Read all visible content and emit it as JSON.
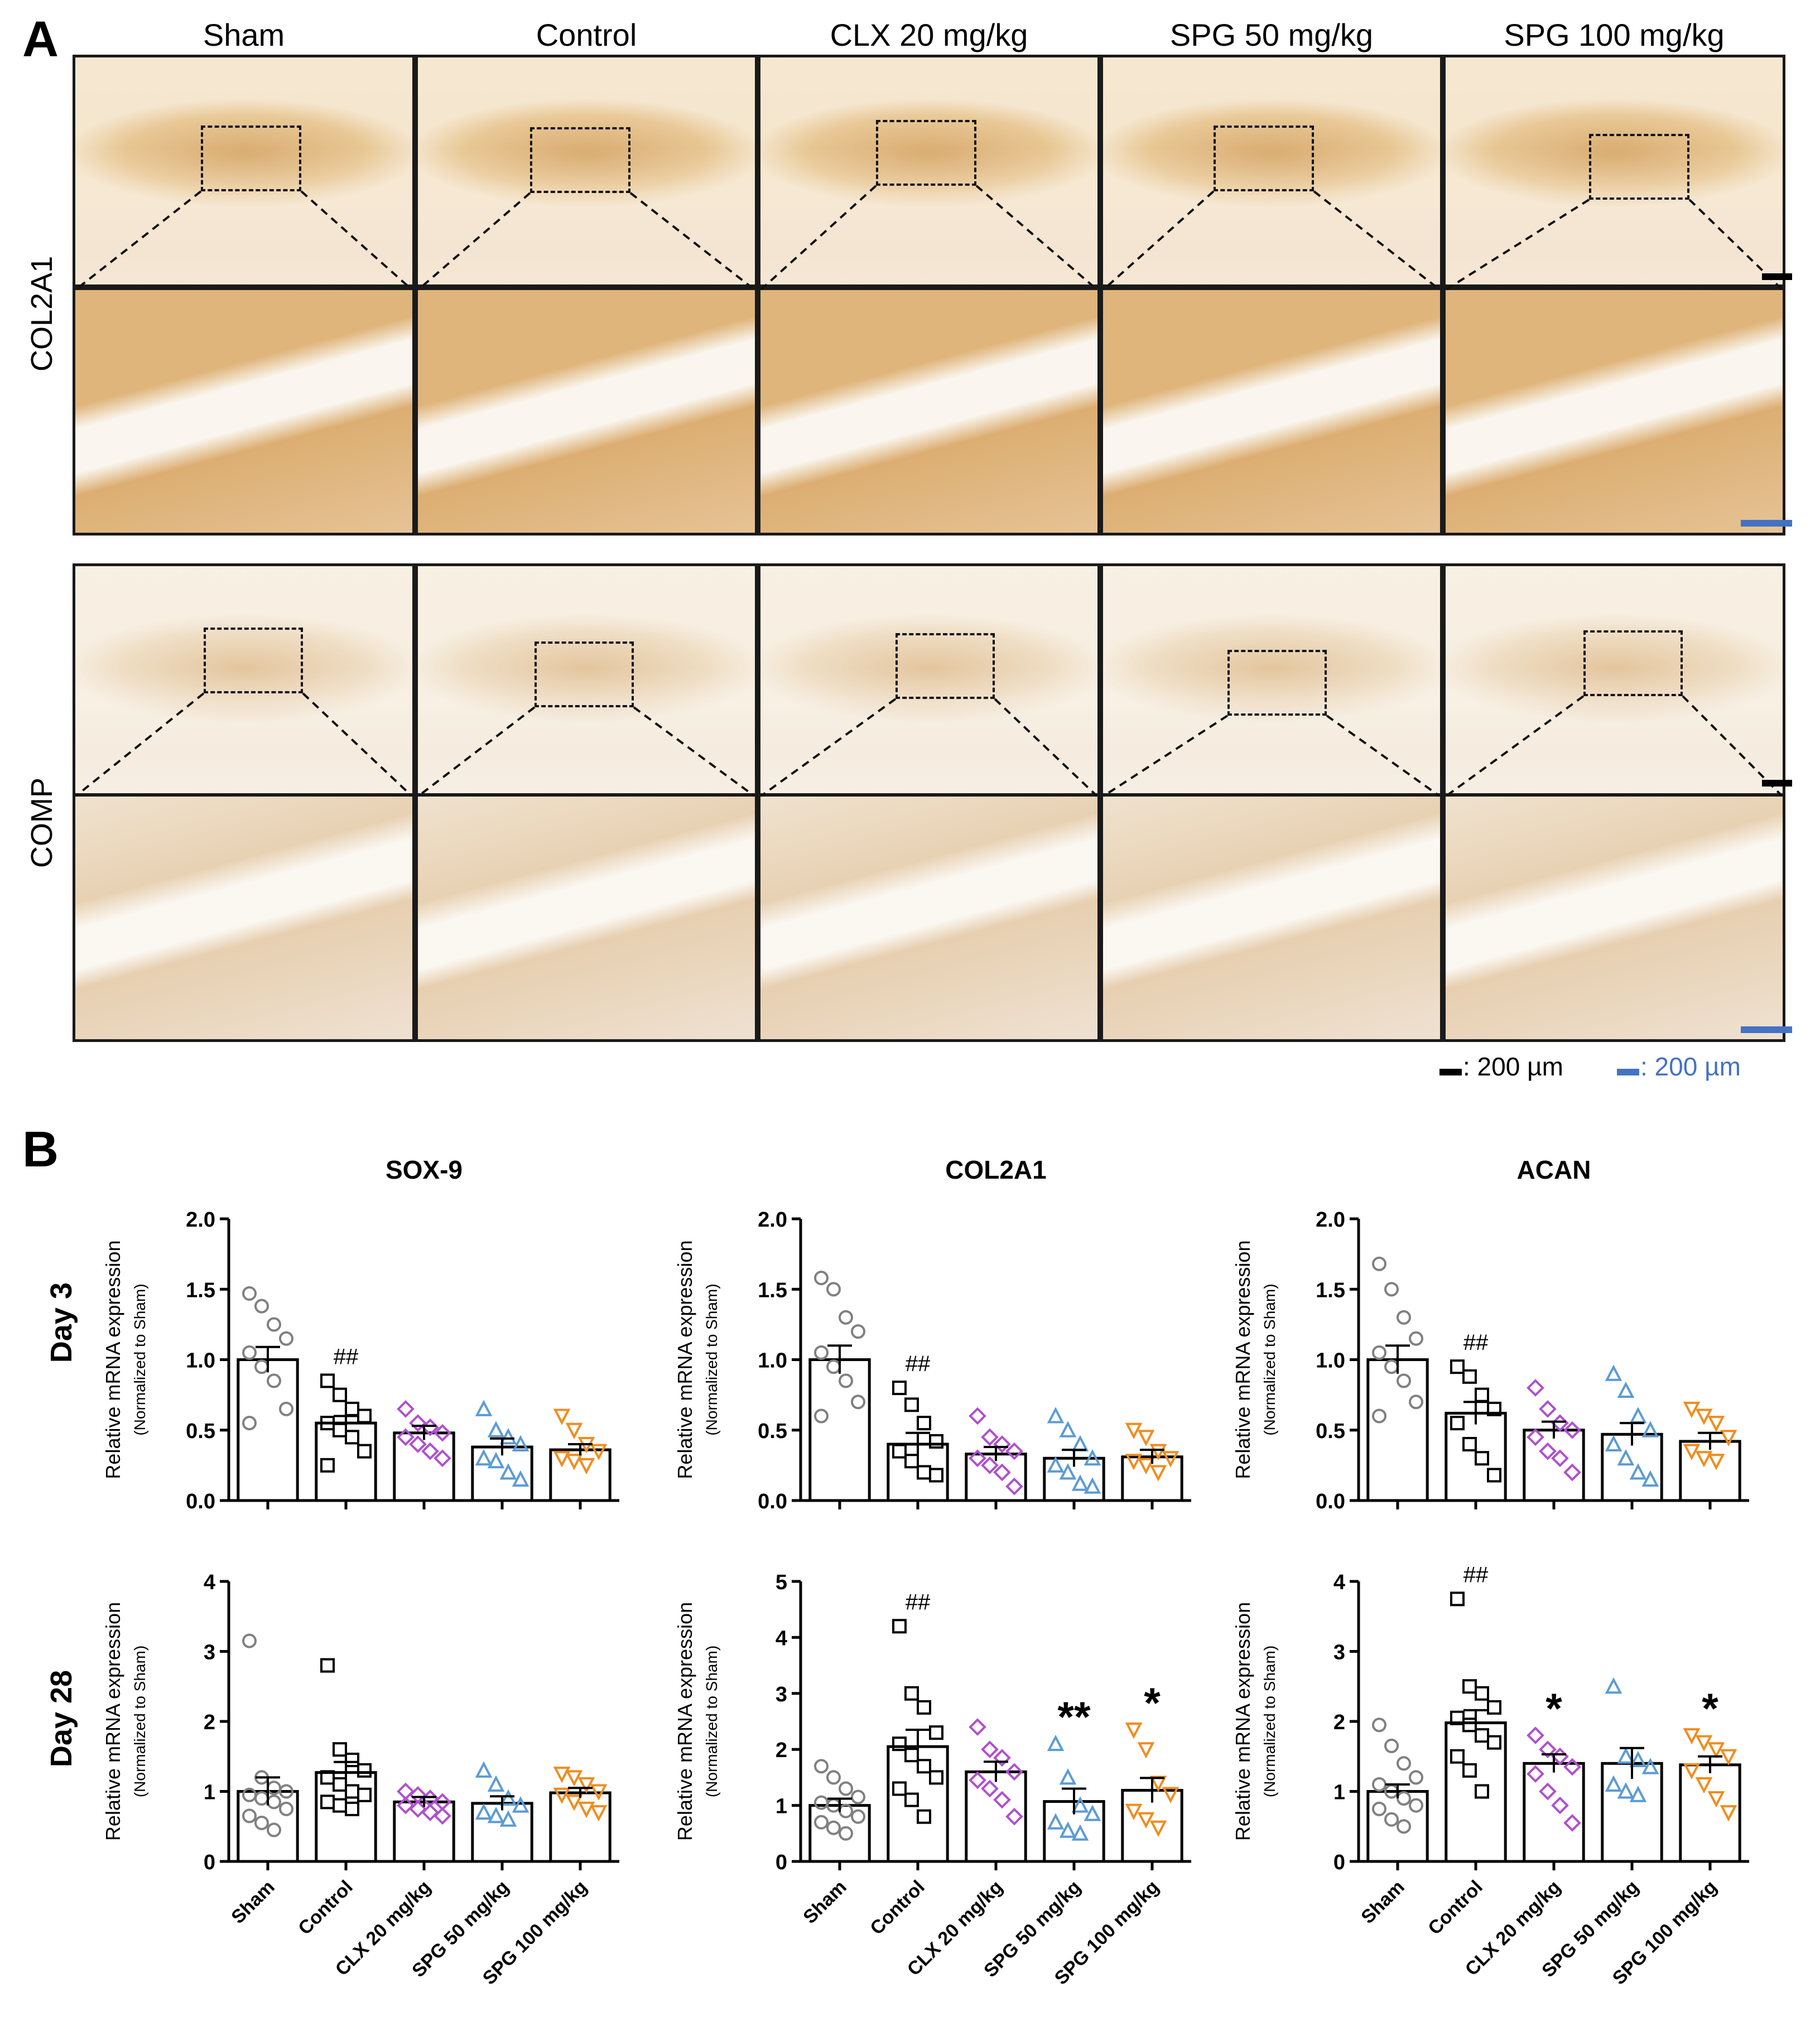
{
  "panelA": {
    "letter": "A",
    "columns": [
      "Sham",
      "Control",
      "CLX 20 mg/kg",
      "SPG 50 mg/kg",
      "SPG 100 mg/kg"
    ],
    "rows": [
      "COL2A1",
      "COMP"
    ],
    "legend": {
      "black": ": 200 µm",
      "blue": ": 200 µm",
      "black_color": "#000000",
      "blue_color": "#4472c4"
    }
  },
  "panelB": {
    "letter": "B",
    "day_labels": [
      "Day 3",
      "Day 28"
    ],
    "ylabel": "Relative mRNA expression",
    "ylabel_sub": "(Normalized to Sham)",
    "groups": [
      "Sham",
      "Control",
      "CLX 20 mg/kg",
      "SPG 50 mg/kg",
      "SPG 100 mg/kg"
    ],
    "group_colors": [
      "#808080",
      "#000000",
      "#b04fd0",
      "#5b9bd5",
      "#f08c1e"
    ],
    "group_markers": [
      "circle",
      "square",
      "diamond",
      "triangle",
      "triangle-down"
    ]
  },
  "chart_data": [
    {
      "type": "bar",
      "title": "SOX-9",
      "day": "Day 3",
      "categories": [
        "Sham",
        "Control",
        "CLX 20 mg/kg",
        "SPG 50 mg/kg",
        "SPG 100 mg/kg"
      ],
      "values": [
        1.0,
        0.55,
        0.48,
        0.38,
        0.36
      ],
      "sem": [
        0.09,
        0.05,
        0.05,
        0.06,
        0.04
      ],
      "ylim": [
        0,
        2.0
      ],
      "yticks": [
        "0.0",
        "0.5",
        "1.0",
        "1.5",
        "2.0"
      ],
      "annotations": [
        "",
        "##",
        "",
        "",
        ""
      ],
      "points": [
        [
          1.47,
          1.38,
          1.25,
          1.15,
          1.05,
          0.95,
          0.85,
          0.65,
          0.55
        ],
        [
          0.85,
          0.75,
          0.65,
          0.6,
          0.55,
          0.5,
          0.45,
          0.35,
          0.25
        ],
        [
          0.65,
          0.55,
          0.52,
          0.48,
          0.45,
          0.4,
          0.35,
          0.3
        ],
        [
          0.65,
          0.5,
          0.45,
          0.4,
          0.3,
          0.28,
          0.2,
          0.15
        ],
        [
          0.6,
          0.5,
          0.4,
          0.35,
          0.3,
          0.28,
          0.25
        ]
      ]
    },
    {
      "type": "bar",
      "title": "COL2A1",
      "day": "Day 3",
      "categories": [
        "Sham",
        "Control",
        "CLX 20 mg/kg",
        "SPG 50 mg/kg",
        "SPG 100 mg/kg"
      ],
      "values": [
        1.0,
        0.4,
        0.33,
        0.3,
        0.31
      ],
      "sem": [
        0.1,
        0.08,
        0.05,
        0.06,
        0.05
      ],
      "ylim": [
        0,
        2.0
      ],
      "yticks": [
        "0.0",
        "0.5",
        "1.0",
        "1.5",
        "2.0"
      ],
      "annotations": [
        "",
        "##",
        "",
        "",
        ""
      ],
      "points": [
        [
          1.58,
          1.5,
          1.3,
          1.2,
          1.05,
          0.95,
          0.85,
          0.7,
          0.6
        ],
        [
          0.8,
          0.68,
          0.55,
          0.42,
          0.35,
          0.28,
          0.2,
          0.18
        ],
        [
          0.6,
          0.45,
          0.4,
          0.35,
          0.3,
          0.25,
          0.2,
          0.1
        ],
        [
          0.6,
          0.5,
          0.4,
          0.3,
          0.25,
          0.2,
          0.12,
          0.1
        ],
        [
          0.5,
          0.45,
          0.35,
          0.3,
          0.28,
          0.25,
          0.2
        ]
      ]
    },
    {
      "type": "bar",
      "title": "ACAN",
      "day": "Day 3",
      "categories": [
        "Sham",
        "Control",
        "CLX 20 mg/kg",
        "SPG 50 mg/kg",
        "SPG 100 mg/kg"
      ],
      "values": [
        1.0,
        0.62,
        0.5,
        0.47,
        0.42
      ],
      "sem": [
        0.1,
        0.08,
        0.06,
        0.08,
        0.06
      ],
      "ylim": [
        0,
        2.0
      ],
      "yticks": [
        "0.0",
        "0.5",
        "1.0",
        "1.5",
        "2.0"
      ],
      "annotations": [
        "",
        "##",
        "",
        "",
        ""
      ],
      "points": [
        [
          1.68,
          1.5,
          1.3,
          1.15,
          1.05,
          0.95,
          0.85,
          0.7,
          0.6
        ],
        [
          0.95,
          0.88,
          0.75,
          0.65,
          0.55,
          0.4,
          0.3,
          0.18
        ],
        [
          0.8,
          0.65,
          0.55,
          0.5,
          0.45,
          0.35,
          0.3,
          0.2
        ],
        [
          0.9,
          0.78,
          0.6,
          0.5,
          0.4,
          0.3,
          0.2,
          0.15
        ],
        [
          0.65,
          0.6,
          0.55,
          0.45,
          0.35,
          0.3,
          0.28
        ]
      ]
    },
    {
      "type": "bar",
      "title": "",
      "day": "Day 28",
      "categories": [
        "Sham",
        "Control",
        "CLX 20 mg/kg",
        "SPG 50 mg/kg",
        "SPG 100 mg/kg"
      ],
      "values": [
        1.0,
        1.27,
        0.85,
        0.83,
        0.98
      ],
      "sem": [
        0.2,
        0.15,
        0.07,
        0.1,
        0.07
      ],
      "ylim": [
        0,
        4
      ],
      "yticks": [
        "0",
        "1",
        "2",
        "3",
        "4"
      ],
      "annotations": [
        "",
        "",
        "",
        "",
        ""
      ],
      "points": [
        [
          3.15,
          1.2,
          1.05,
          1.0,
          0.95,
          0.9,
          0.85,
          0.75,
          0.65,
          0.55,
          0.45
        ],
        [
          2.8,
          1.6,
          1.45,
          1.3,
          1.2,
          1.1,
          1.0,
          0.95,
          0.85,
          0.8,
          0.75
        ],
        [
          1.0,
          0.95,
          0.9,
          0.85,
          0.8,
          0.75,
          0.7,
          0.65
        ],
        [
          1.3,
          1.1,
          0.9,
          0.8,
          0.7,
          0.65,
          0.6
        ],
        [
          1.25,
          1.2,
          1.1,
          1.0,
          0.95,
          0.85,
          0.75,
          0.7
        ]
      ]
    },
    {
      "type": "bar",
      "title": "",
      "day": "Day 28",
      "categories": [
        "Sham",
        "Control",
        "CLX 20 mg/kg",
        "SPG 50 mg/kg",
        "SPG 100 mg/kg"
      ],
      "values": [
        1.0,
        2.05,
        1.6,
        1.07,
        1.27
      ],
      "sem": [
        0.12,
        0.3,
        0.18,
        0.23,
        0.22
      ],
      "ylim": [
        0,
        5
      ],
      "yticks": [
        "0",
        "1",
        "2",
        "3",
        "4",
        "5"
      ],
      "annotations": [
        "",
        "##",
        "",
        "**",
        "*"
      ],
      "points": [
        [
          1.7,
          1.5,
          1.3,
          1.15,
          1.05,
          1.0,
          0.9,
          0.8,
          0.7,
          0.6,
          0.5
        ],
        [
          4.2,
          3.0,
          2.75,
          2.3,
          2.1,
          1.9,
          1.7,
          1.5,
          1.3,
          1.1,
          0.8
        ],
        [
          2.4,
          2.0,
          1.85,
          1.6,
          1.45,
          1.3,
          1.1,
          0.8
        ],
        [
          2.1,
          1.5,
          1.0,
          0.85,
          0.7,
          0.55,
          0.5
        ],
        [
          2.35,
          2.0,
          1.4,
          1.2,
          0.9,
          0.75,
          0.6
        ]
      ]
    },
    {
      "type": "bar",
      "title": "",
      "day": "Day 28",
      "categories": [
        "Sham",
        "Control",
        "CLX 20 mg/kg",
        "SPG 50 mg/kg",
        "SPG 100 mg/kg"
      ],
      "values": [
        1.0,
        1.98,
        1.4,
        1.4,
        1.38
      ],
      "sem": [
        0.1,
        0.18,
        0.13,
        0.22,
        0.12
      ],
      "ylim": [
        0,
        4
      ],
      "yticks": [
        "0",
        "1",
        "2",
        "3",
        "4"
      ],
      "annotations": [
        "",
        "##",
        "*",
        "",
        "*"
      ],
      "points": [
        [
          1.95,
          1.65,
          1.4,
          1.2,
          1.1,
          1.0,
          0.9,
          0.8,
          0.75,
          0.6,
          0.5
        ],
        [
          3.75,
          2.5,
          2.4,
          2.2,
          2.05,
          1.95,
          1.8,
          1.7,
          1.5,
          1.3,
          1.0
        ],
        [
          1.8,
          1.6,
          1.5,
          1.35,
          1.25,
          1.0,
          0.8,
          0.55
        ],
        [
          2.5,
          1.5,
          1.45,
          1.35,
          1.1,
          1.0,
          0.95
        ],
        [
          1.8,
          1.7,
          1.6,
          1.5,
          1.3,
          1.1,
          0.9,
          0.7
        ]
      ]
    }
  ]
}
